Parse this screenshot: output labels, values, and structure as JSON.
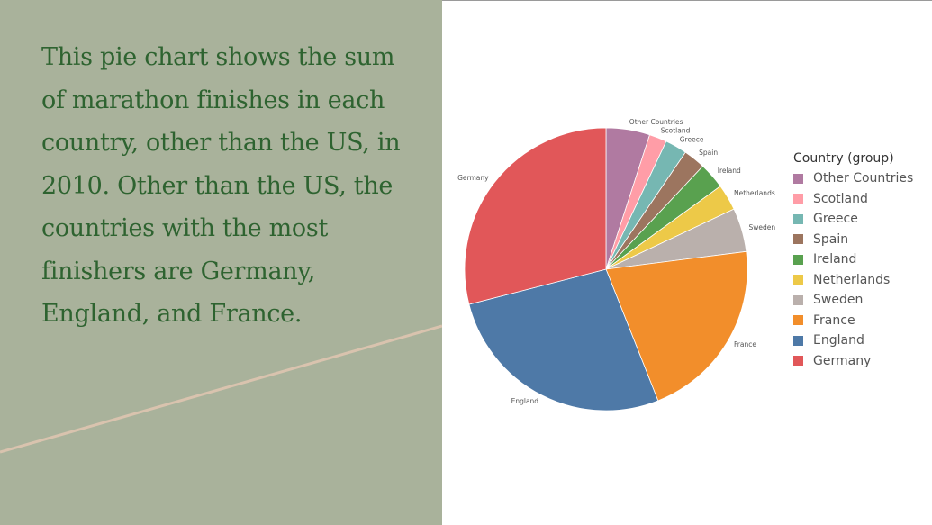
{
  "caption": "This pie chart shows the sum of marathon finishes in each country, other than the US, in 2010. Other than the US, the countries with the most finishers are Germany, England, and France.",
  "legend": {
    "title": "Country (group)",
    "items": [
      {
        "label": "Other Countries",
        "color": "#b07aa1"
      },
      {
        "label": "Scotland",
        "color": "#ff9da7"
      },
      {
        "label": "Greece",
        "color": "#76b7b2"
      },
      {
        "label": "Spain",
        "color": "#9c755f"
      },
      {
        "label": "Ireland",
        "color": "#59a14f"
      },
      {
        "label": "Netherlands",
        "color": "#edc948"
      },
      {
        "label": "Sweden",
        "color": "#bab0ac"
      },
      {
        "label": "France",
        "color": "#f28e2b"
      },
      {
        "label": "England",
        "color": "#4e79a7"
      },
      {
        "label": "Germany",
        "color": "#e15759"
      }
    ]
  },
  "chart_data": {
    "type": "pie",
    "title": "",
    "start": "12 o'clock",
    "direction": "clockwise",
    "slices": [
      {
        "label": "Other Countries",
        "value": 5.0,
        "color": "#b07aa1"
      },
      {
        "label": "Scotland",
        "value": 2.0,
        "color": "#ff9da7"
      },
      {
        "label": "Greece",
        "value": 2.5,
        "color": "#76b7b2"
      },
      {
        "label": "Spain",
        "value": 2.5,
        "color": "#9c755f"
      },
      {
        "label": "Ireland",
        "value": 3.0,
        "color": "#59a14f"
      },
      {
        "label": "Netherlands",
        "value": 3.0,
        "color": "#edc948"
      },
      {
        "label": "Sweden",
        "value": 5.0,
        "color": "#bab0ac"
      },
      {
        "label": "France",
        "value": 21.0,
        "color": "#f28e2b"
      },
      {
        "label": "England",
        "value": 27.0,
        "color": "#4e79a7"
      },
      {
        "label": "Germany",
        "value": 29.0,
        "color": "#e15759"
      }
    ],
    "legend_position": "right"
  }
}
